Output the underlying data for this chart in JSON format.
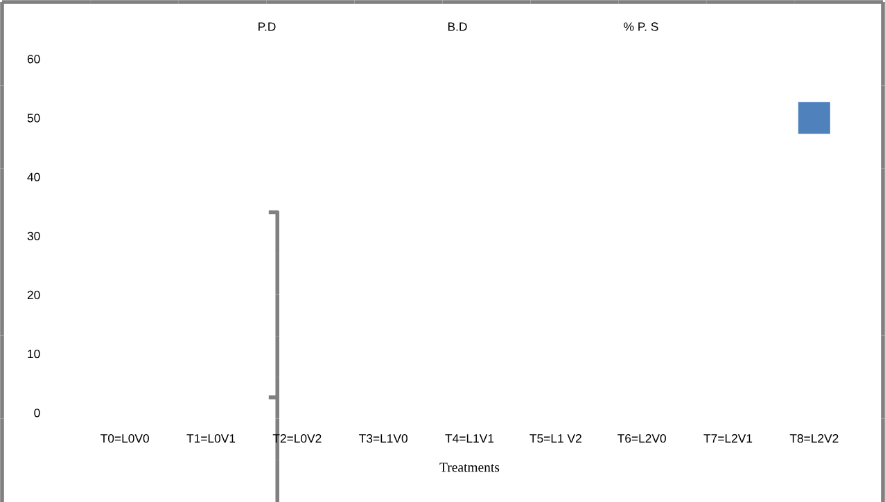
{
  "chart_data": {
    "type": "bar",
    "xlabel": "Treatments",
    "categories": [
      "T0=L0V0",
      "T1=L0V1",
      "T2=L0V2",
      "T3=L1V0",
      "T4=L1V1",
      "T5=L1 V2",
      "T6=L2V0",
      "T7=L2V1",
      "T8=L2V2"
    ],
    "series": [
      {
        "color": "#4f81bd",
        "values": [
          null,
          null,
          null,
          null,
          null,
          null,
          null,
          null,
          5.4
        ],
        "base": [
          null,
          null,
          null,
          null,
          null,
          null,
          null,
          null,
          47.3
        ]
      }
    ],
    "annotations": [
      "P.D",
      "B.D",
      "% P. S"
    ],
    "ylim": [
      0,
      60
    ],
    "yticks": [
      0,
      10,
      20,
      30,
      40,
      50,
      60
    ],
    "grid": false
  }
}
